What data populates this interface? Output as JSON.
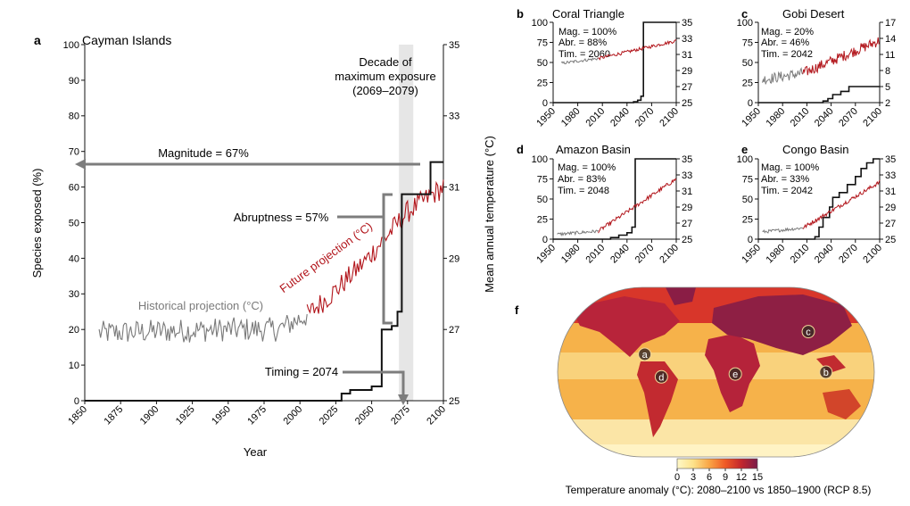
{
  "colors": {
    "timing": "#111111",
    "historical": "#7a7a7a",
    "future": "#b2151b",
    "annotation": "#7d7d7d",
    "decade_band": "#e6e6e6"
  },
  "chart_data": [
    {
      "id": "a",
      "type": "line",
      "panel_label": "a",
      "title": "Cayman Islands",
      "xlabel": "Year",
      "ylabel": "Species exposed (%)",
      "y2label": "Mean annual temperature (°C)",
      "xlim": [
        1850,
        2100
      ],
      "ylim": [
        0,
        100
      ],
      "y2lim": [
        25,
        35
      ],
      "xticks": [
        1850,
        1875,
        1900,
        1925,
        1950,
        1975,
        2000,
        2025,
        2050,
        2075,
        2100
      ],
      "yticks": [
        0,
        10,
        20,
        30,
        40,
        50,
        60,
        70,
        80,
        90,
        100
      ],
      "y2ticks": [
        25,
        27,
        29,
        31,
        33,
        35
      ],
      "decade_band": [
        2069,
        2079
      ],
      "annotations": {
        "decade_lines": [
          "Decade of",
          "maximum exposure",
          "(2069–2079)"
        ],
        "magnitude": "Magnitude = 67%",
        "abruptness": "Abruptness = 57%",
        "timing": "Timing = 2074",
        "historical": "Historical projection (°C)",
        "future": "Future projection (°C)"
      },
      "series": [
        {
          "role": "exposure",
          "axis": "left",
          "step": true,
          "x": [
            1850,
            2029,
            2035,
            2050,
            2057,
            2064,
            2068,
            2071,
            2077,
            2091,
            2100
          ],
          "values": [
            0,
            2,
            3,
            4,
            20,
            21,
            25,
            58,
            58,
            67,
            67
          ]
        },
        {
          "role": "historical",
          "axis": "right",
          "noise": 0.34,
          "x": [
            1860,
            1900,
            1950,
            1985,
            2005
          ],
          "values": [
            26.9,
            26.95,
            27.0,
            27.0,
            27.4
          ]
        },
        {
          "role": "future",
          "axis": "right",
          "noise": 0.32,
          "x": [
            2005,
            2025,
            2045,
            2060,
            2075,
            2100
          ],
          "values": [
            27.4,
            28.1,
            28.9,
            29.6,
            30.3,
            31.0
          ]
        }
      ]
    },
    {
      "id": "b",
      "type": "line",
      "panel_label": "b",
      "title": "Coral Triangle",
      "stats": [
        "Mag. = 100%",
        "Abr. = 88%",
        "Tim. = 2060"
      ],
      "xlim": [
        1950,
        2100
      ],
      "ylim": [
        0,
        100
      ],
      "y2lim": [
        25,
        35
      ],
      "xticks": [
        1950,
        1980,
        2010,
        2040,
        2070,
        2100
      ],
      "yticks": [
        0,
        25,
        50,
        75,
        100
      ],
      "y2ticks": [
        25,
        27,
        29,
        31,
        33,
        35
      ],
      "series": [
        {
          "role": "exposure",
          "axis": "left",
          "step": true,
          "x": [
            1950,
            2048,
            2053,
            2057,
            2060,
            2100
          ],
          "values": [
            0,
            1,
            3,
            8,
            100,
            100
          ]
        },
        {
          "role": "historical",
          "axis": "right",
          "noise": 0.18,
          "x": [
            1960,
            2005
          ],
          "values": [
            29.9,
            30.5
          ]
        },
        {
          "role": "future",
          "axis": "right",
          "noise": 0.2,
          "x": [
            2005,
            2100
          ],
          "values": [
            30.5,
            32.7
          ]
        }
      ]
    },
    {
      "id": "c",
      "type": "line",
      "panel_label": "c",
      "title": "Gobi Desert",
      "stats": [
        "Mag. = 20%",
        "Abr. = 46%",
        "Tim. = 2042"
      ],
      "xlim": [
        1950,
        2100
      ],
      "ylim": [
        0,
        100
      ],
      "y2lim": [
        2,
        17
      ],
      "xticks": [
        1950,
        1980,
        2010,
        2040,
        2070,
        2100
      ],
      "yticks": [
        0,
        25,
        50,
        75,
        100
      ],
      "y2ticks": [
        2,
        5,
        8,
        11,
        14,
        17
      ],
      "series": [
        {
          "role": "exposure",
          "axis": "left",
          "step": true,
          "x": [
            1950,
            2030,
            2036,
            2042,
            2052,
            2062,
            2100
          ],
          "values": [
            0,
            2,
            5,
            10,
            14,
            20,
            20
          ]
        },
        {
          "role": "historical",
          "axis": "right",
          "noise": 1.0,
          "x": [
            1955,
            2005
          ],
          "values": [
            6.3,
            7.5
          ]
        },
        {
          "role": "future",
          "axis": "right",
          "noise": 1.0,
          "x": [
            2005,
            2100
          ],
          "values": [
            7.5,
            13.6
          ]
        }
      ]
    },
    {
      "id": "d",
      "type": "line",
      "panel_label": "d",
      "title": "Amazon Basin",
      "stats": [
        "Mag. = 100%",
        "Abr. = 83%",
        "Tim. = 2048"
      ],
      "xlim": [
        1950,
        2100
      ],
      "ylim": [
        0,
        100
      ],
      "y2lim": [
        25,
        35
      ],
      "xticks": [
        1950,
        1980,
        2010,
        2040,
        2070,
        2100
      ],
      "yticks": [
        0,
        25,
        50,
        75,
        100
      ],
      "y2ticks": [
        25,
        27,
        29,
        31,
        33,
        35
      ],
      "series": [
        {
          "role": "exposure",
          "axis": "left",
          "step": true,
          "x": [
            1950,
            2020,
            2030,
            2040,
            2046,
            2050,
            2054,
            2100
          ],
          "values": [
            0,
            2,
            5,
            8,
            15,
            100,
            100,
            100
          ]
        },
        {
          "role": "historical",
          "axis": "right",
          "noise": 0.2,
          "x": [
            1955,
            2005
          ],
          "values": [
            25.6,
            26.0
          ]
        },
        {
          "role": "future",
          "axis": "right",
          "noise": 0.25,
          "x": [
            2005,
            2100
          ],
          "values": [
            26.0,
            32.5
          ]
        }
      ]
    },
    {
      "id": "e",
      "type": "line",
      "panel_label": "e",
      "title": "Congo Basin",
      "stats": [
        "Mag. = 100%",
        "Abr. = 33%",
        "Tim. = 2042"
      ],
      "xlim": [
        1950,
        2100
      ],
      "ylim": [
        0,
        100
      ],
      "y2lim": [
        25,
        35
      ],
      "xticks": [
        1950,
        1980,
        2010,
        2040,
        2070,
        2100
      ],
      "yticks": [
        0,
        25,
        50,
        75,
        100
      ],
      "y2ticks": [
        25,
        27,
        29,
        31,
        33,
        35
      ],
      "series": [
        {
          "role": "exposure",
          "axis": "left",
          "step": true,
          "x": [
            1950,
            2020,
            2025,
            2030,
            2038,
            2042,
            2050,
            2060,
            2070,
            2077,
            2084,
            2092,
            2100
          ],
          "values": [
            0,
            3,
            15,
            27,
            40,
            52,
            58,
            68,
            78,
            88,
            95,
            100,
            100
          ]
        },
        {
          "role": "historical",
          "axis": "right",
          "noise": 0.2,
          "x": [
            1955,
            2005
          ],
          "values": [
            25.9,
            26.4
          ]
        },
        {
          "role": "future",
          "axis": "right",
          "noise": 0.25,
          "x": [
            2005,
            2100
          ],
          "values": [
            26.4,
            32.1
          ]
        }
      ]
    }
  ],
  "map": {
    "panel_label": "f",
    "caption": "Temperature anomaly (°C): 2080–2100 vs 1850–1900 (RCP 8.5)",
    "colorbar": {
      "ticks": [
        0,
        3,
        6,
        9,
        12,
        15
      ],
      "colors": [
        "#fff8c8",
        "#fde28a",
        "#f9a546",
        "#ef5a26",
        "#c2262d",
        "#7a1c4a"
      ]
    },
    "markers": [
      {
        "label": "a",
        "lon": -81,
        "lat": 19
      },
      {
        "label": "b",
        "lon": 125,
        "lat": 0
      },
      {
        "label": "c",
        "lon": 105,
        "lat": 43
      },
      {
        "label": "d",
        "lon": -62,
        "lat": -5
      },
      {
        "label": "e",
        "lon": 22,
        "lat": -2
      }
    ]
  }
}
